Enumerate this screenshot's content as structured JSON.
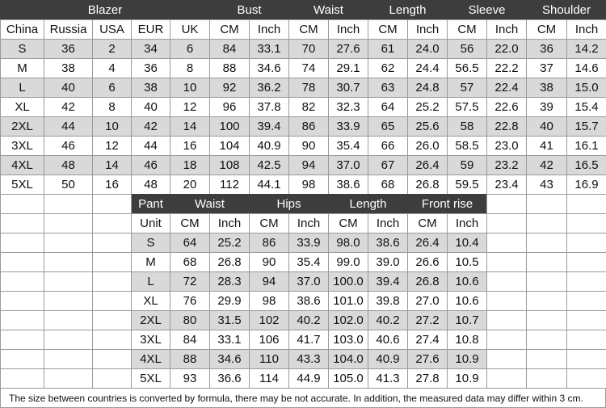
{
  "blazer": {
    "title": "Blazer",
    "groups": [
      "Bust",
      "Waist",
      "Length",
      "Sleeve",
      "Shoulder"
    ],
    "subheaders": [
      "China",
      "Russia",
      "USA",
      "EUR",
      "UK",
      "CM",
      "Inch",
      "CM",
      "Inch",
      "CM",
      "Inch",
      "CM",
      "Inch",
      "CM",
      "Inch"
    ],
    "rows": [
      [
        "S",
        "36",
        "2",
        "34",
        "6",
        "84",
        "33.1",
        "70",
        "27.6",
        "61",
        "24.0",
        "56",
        "22.0",
        "36",
        "14.2"
      ],
      [
        "M",
        "38",
        "4",
        "36",
        "8",
        "88",
        "34.6",
        "74",
        "29.1",
        "62",
        "24.4",
        "56.5",
        "22.2",
        "37",
        "14.6"
      ],
      [
        "L",
        "40",
        "6",
        "38",
        "10",
        "92",
        "36.2",
        "78",
        "30.7",
        "63",
        "24.8",
        "57",
        "22.4",
        "38",
        "15.0"
      ],
      [
        "XL",
        "42",
        "8",
        "40",
        "12",
        "96",
        "37.8",
        "82",
        "32.3",
        "64",
        "25.2",
        "57.5",
        "22.6",
        "39",
        "15.4"
      ],
      [
        "2XL",
        "44",
        "10",
        "42",
        "14",
        "100",
        "39.4",
        "86",
        "33.9",
        "65",
        "25.6",
        "58",
        "22.8",
        "40",
        "15.7"
      ],
      [
        "3XL",
        "46",
        "12",
        "44",
        "16",
        "104",
        "40.9",
        "90",
        "35.4",
        "66",
        "26.0",
        "58.5",
        "23.0",
        "41",
        "16.1"
      ],
      [
        "4XL",
        "48",
        "14",
        "46",
        "18",
        "108",
        "42.5",
        "94",
        "37.0",
        "67",
        "26.4",
        "59",
        "23.2",
        "42",
        "16.5"
      ],
      [
        "5XL",
        "50",
        "16",
        "48",
        "20",
        "112",
        "44.1",
        "98",
        "38.6",
        "68",
        "26.8",
        "59.5",
        "23.4",
        "43",
        "16.9"
      ]
    ]
  },
  "pant": {
    "title": "Pant",
    "groups": [
      "Waist",
      "Hips",
      "Length",
      "Front rise"
    ],
    "subheaders": [
      "Unit",
      "CM",
      "Inch",
      "CM",
      "Inch",
      "CM",
      "Inch",
      "CM",
      "Inch"
    ],
    "rows": [
      [
        "S",
        "64",
        "25.2",
        "86",
        "33.9",
        "98.0",
        "38.6",
        "26.4",
        "10.4"
      ],
      [
        "M",
        "68",
        "26.8",
        "90",
        "35.4",
        "99.0",
        "39.0",
        "26.6",
        "10.5"
      ],
      [
        "L",
        "72",
        "28.3",
        "94",
        "37.0",
        "100.0",
        "39.4",
        "26.8",
        "10.6"
      ],
      [
        "XL",
        "76",
        "29.9",
        "98",
        "38.6",
        "101.0",
        "39.8",
        "27.0",
        "10.6"
      ],
      [
        "2XL",
        "80",
        "31.5",
        "102",
        "40.2",
        "102.0",
        "40.2",
        "27.2",
        "10.7"
      ],
      [
        "3XL",
        "84",
        "33.1",
        "106",
        "41.7",
        "103.0",
        "40.6",
        "27.4",
        "10.8"
      ],
      [
        "4XL",
        "88",
        "34.6",
        "110",
        "43.3",
        "104.0",
        "40.9",
        "27.6",
        "10.9"
      ],
      [
        "5XL",
        "93",
        "36.6",
        "114",
        "44.9",
        "105.0",
        "41.3",
        "27.8",
        "10.9"
      ]
    ]
  },
  "note": "The size between countries is converted by formula, there may be not accurate. In addition, the measured data may differ within 3 cm.",
  "colors": {
    "header_bg": "#3d3d3d",
    "header_text": "#ffffff",
    "shade": "#d9d9d9",
    "border": "#9a9a9a"
  }
}
